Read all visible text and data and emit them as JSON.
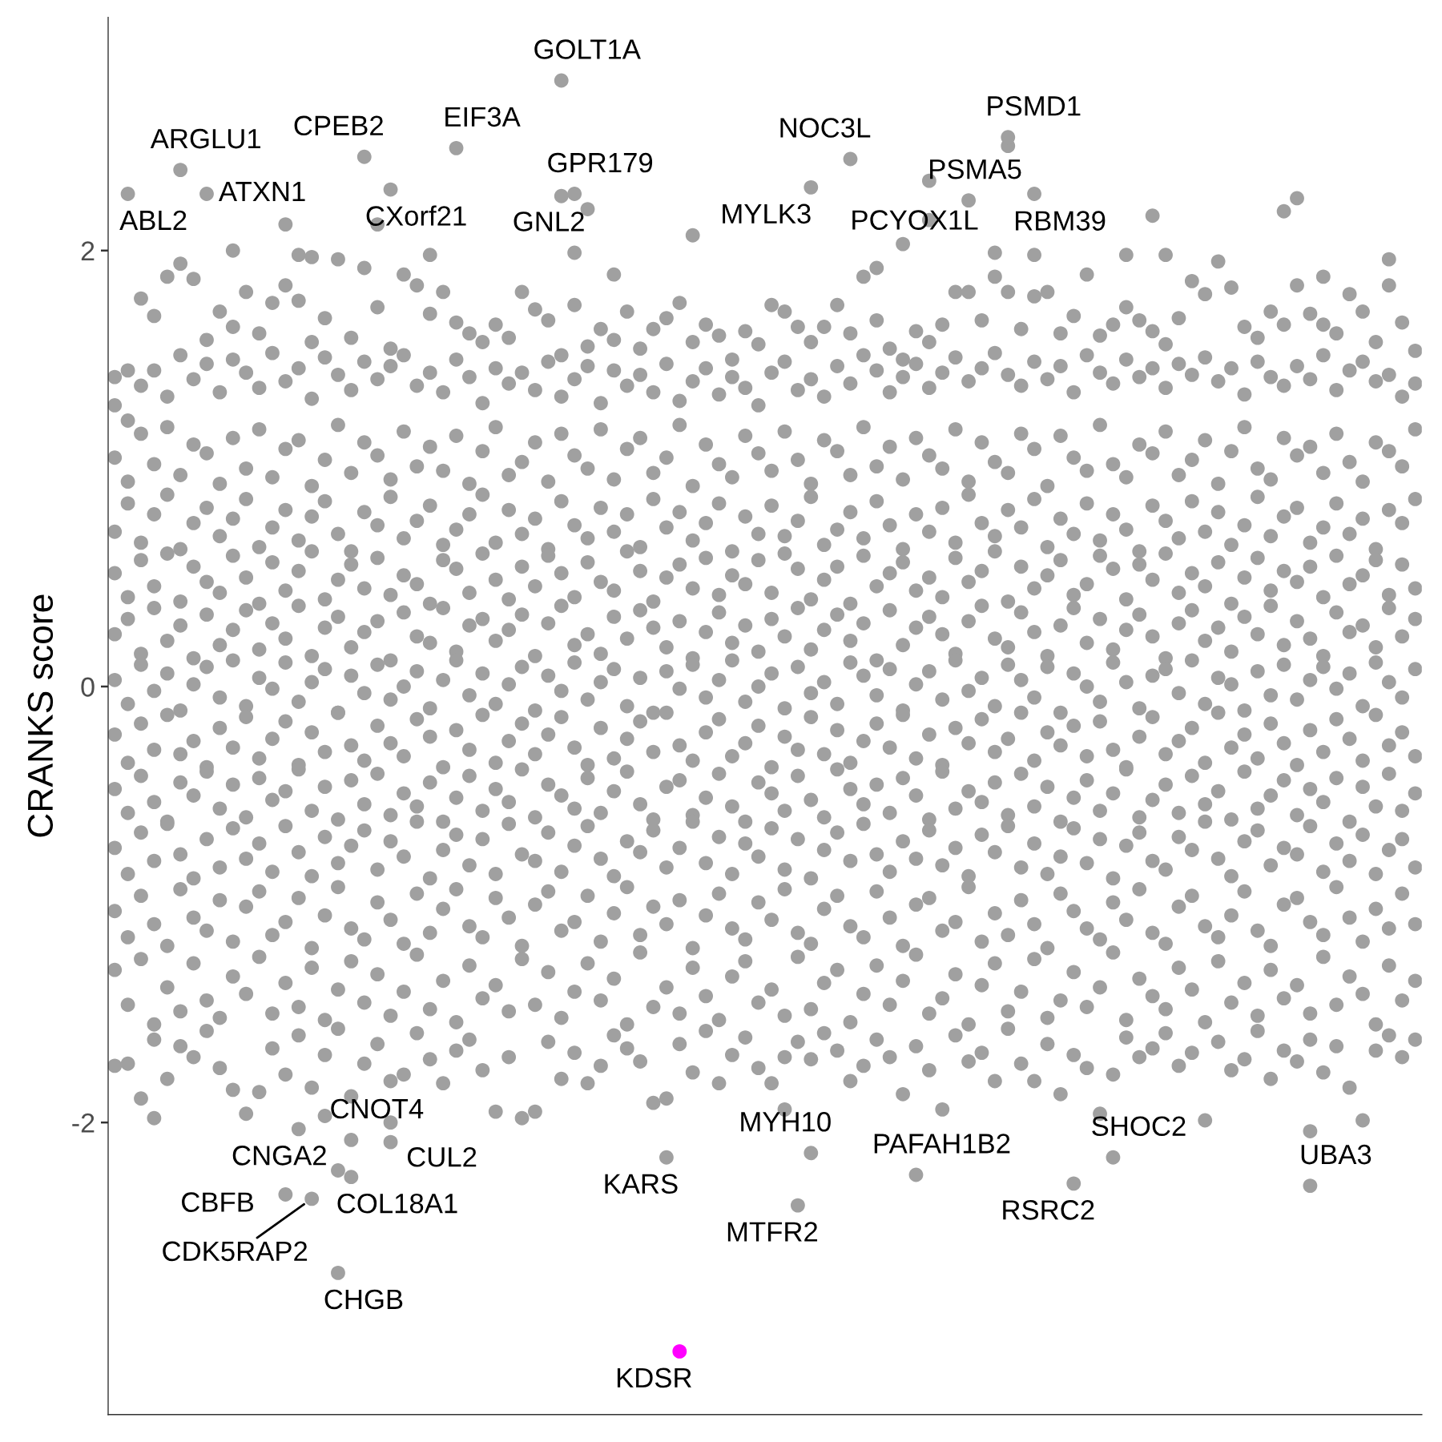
{
  "chart_data": {
    "type": "scatter",
    "ylabel": "CRANKS score",
    "marker": "circle",
    "tick_labels": "y",
    "ylim": [
      -3.34,
      3.07
    ],
    "yticks": [
      -2,
      0,
      2
    ],
    "categories": [
      null,
      null,
      null,
      null,
      null,
      null,
      null,
      null,
      null,
      null,
      null,
      null,
      null,
      null,
      null,
      null,
      null,
      null,
      null,
      null,
      null,
      null,
      null,
      null,
      null,
      null,
      null,
      null,
      null,
      null,
      null,
      null,
      null,
      null,
      null,
      null,
      null,
      null,
      null,
      null,
      null,
      null,
      null,
      null,
      null,
      null,
      null,
      null,
      null,
      null,
      null,
      null,
      null,
      null,
      null,
      null,
      null,
      null,
      null,
      null,
      null,
      null,
      null,
      null,
      null,
      null,
      null,
      null,
      null,
      null,
      null,
      null,
      null,
      null,
      null,
      null,
      null,
      null,
      null,
      null,
      null,
      null,
      null,
      null,
      null,
      null,
      null,
      null,
      null,
      null,
      null,
      null,
      null,
      null,
      null,
      null,
      null,
      null,
      null,
      null
    ],
    "series": [
      {
        "color": "#a0a0a0",
        "values": [
          null,
          null,
          null,
          null,
          null,
          null,
          null,
          null,
          null,
          2.0,
          null,
          null,
          null,
          2.12,
          1.98,
          1.97,
          null,
          -2.22,
          null,
          null,
          2.12,
          null,
          null,
          null,
          1.98,
          null,
          null,
          null,
          null,
          null,
          null,
          null,
          null,
          null,
          2.25,
          null,
          2.19,
          null,
          1.89,
          null,
          null,
          null,
          null,
          null,
          2.07,
          null,
          null,
          null,
          null,
          null,
          null,
          null,
          null,
          null,
          null,
          null,
          null,
          null,
          1.92,
          null,
          null,
          null,
          2.14,
          null,
          null,
          null,
          null,
          1.99,
          2.48,
          null,
          2.26,
          null,
          null,
          null,
          null,
          null,
          null,
          1.98,
          null,
          2.16,
          1.98,
          null,
          null,
          null,
          null,
          null,
          null,
          null,
          null,
          2.18,
          2.24,
          null,
          1.88,
          null,
          null,
          null,
          null,
          1.96,
          null,
          null
        ]
      },
      {
        "color": "#a0a0a0",
        "values": [
          1.42,
          1.45,
          1.78,
          1.7,
          1.88,
          1.94,
          1.87,
          1.59,
          1.72,
          1.65,
          1.81,
          1.62,
          1.76,
          1.84,
          1.77,
          1.58,
          1.69,
          1.96,
          1.6,
          1.92,
          1.74,
          1.55,
          1.89,
          1.84,
          1.71,
          1.81,
          1.67,
          1.62,
          1.58,
          1.66,
          1.6,
          1.81,
          1.73,
          1.68,
          1.52,
          1.75,
          1.56,
          1.64,
          1.59,
          1.72,
          1.55,
          1.64,
          1.69,
          1.76,
          1.58,
          1.66,
          1.61,
          1.5,
          1.63,
          1.57,
          1.75,
          1.72,
          1.65,
          1.58,
          1.65,
          1.75,
          1.62,
          1.88,
          1.68,
          1.55,
          1.5,
          1.63,
          1.58,
          1.66,
          1.81,
          1.81,
          1.68,
          1.88,
          1.81,
          1.64,
          1.79,
          1.81,
          1.62,
          1.7,
          1.89,
          1.61,
          1.66,
          1.74,
          1.68,
          1.63,
          1.57,
          1.69,
          1.86,
          1.8,
          1.95,
          1.83,
          1.65,
          1.6,
          1.72,
          1.66,
          1.84,
          1.71,
          1.66,
          1.62,
          1.8,
          1.72,
          1.58,
          1.84,
          1.67,
          1.54
        ]
      },
      {
        "color": "#a0a0a0",
        "values": [
          1.29,
          1.22,
          1.38,
          1.45,
          1.33,
          1.52,
          1.41,
          1.48,
          1.35,
          1.5,
          1.44,
          1.37,
          1.53,
          1.4,
          1.46,
          1.32,
          1.51,
          1.43,
          1.36,
          1.49,
          1.41,
          1.47,
          1.52,
          1.38,
          1.44,
          1.35,
          1.5,
          1.42,
          1.3,
          1.46,
          1.39,
          1.44,
          1.36,
          1.49,
          1.33,
          1.41,
          1.47,
          1.3,
          1.45,
          1.38,
          1.43,
          1.35,
          1.48,
          1.31,
          1.4,
          1.46,
          1.34,
          1.42,
          1.37,
          1.29,
          1.44,
          1.49,
          1.36,
          1.41,
          1.33,
          1.47,
          1.39,
          1.52,
          1.45,
          1.35,
          1.42,
          1.48,
          1.37,
          1.44,
          1.51,
          1.4,
          1.46,
          1.53,
          1.43,
          1.38,
          1.49,
          1.41,
          1.47,
          1.35,
          1.52,
          1.44,
          1.39,
          1.5,
          1.42,
          1.46,
          1.37,
          1.48,
          1.43,
          1.51,
          1.4,
          1.46,
          1.34,
          1.49,
          1.42,
          1.38,
          1.47,
          1.41,
          1.52,
          1.36,
          1.45,
          1.49,
          1.4,
          1.43,
          1.33,
          1.39
        ]
      },
      {
        "color": "#a0a0a0",
        "values": [
          1.05,
          0.94,
          1.16,
          1.02,
          1.19,
          0.97,
          1.11,
          1.07,
          0.93,
          1.14,
          1.0,
          1.18,
          0.96,
          1.09,
          1.13,
          0.92,
          1.04,
          1.2,
          0.98,
          1.12,
          1.06,
          0.95,
          1.17,
          1.01,
          1.1,
          0.99,
          1.15,
          0.93,
          1.08,
          1.19,
          0.97,
          1.03,
          1.12,
          0.94,
          1.16,
          1.06,
          1.0,
          1.18,
          0.95,
          1.09,
          1.14,
          0.98,
          1.05,
          1.2,
          0.92,
          1.11,
          1.02,
          0.96,
          1.15,
          1.07,
          0.99,
          1.17,
          1.04,
          0.93,
          1.13,
          1.08,
          0.97,
          1.19,
          1.01,
          1.1,
          0.95,
          1.14,
          1.06,
          1.0,
          1.18,
          0.94,
          1.12,
          1.03,
          0.98,
          1.16,
          1.09,
          0.92,
          1.15,
          1.05,
          0.99,
          1.2,
          1.02,
          0.96,
          1.11,
          1.07,
          1.17,
          0.97,
          1.04,
          1.13,
          0.93,
          1.08,
          1.19,
          1.0,
          0.95,
          1.14,
          1.06,
          1.1,
          0.98,
          1.16,
          1.03,
          0.94,
          1.12,
          1.08,
          1.01,
          1.18
        ]
      },
      {
        "color": "#a0a0a0",
        "values": [
          0.71,
          0.84,
          0.66,
          0.79,
          0.88,
          0.63,
          0.75,
          0.82,
          0.69,
          0.77,
          0.86,
          0.64,
          0.73,
          0.81,
          0.67,
          0.78,
          0.85,
          0.7,
          0.62,
          0.8,
          0.74,
          0.87,
          0.68,
          0.76,
          0.83,
          0.65,
          0.72,
          0.79,
          0.88,
          0.66,
          0.81,
          0.7,
          0.77,
          0.63,
          0.85,
          0.74,
          0.68,
          0.82,
          0.71,
          0.79,
          0.64,
          0.86,
          0.73,
          0.8,
          0.67,
          0.75,
          0.84,
          0.62,
          0.78,
          0.7,
          0.83,
          0.69,
          0.76,
          0.87,
          0.65,
          0.72,
          0.8,
          0.68,
          0.85,
          0.74,
          0.63,
          0.79,
          0.71,
          0.82,
          0.66,
          0.88,
          0.75,
          0.69,
          0.81,
          0.73,
          0.86,
          0.64,
          0.77,
          0.7,
          0.84,
          0.67,
          0.79,
          0.72,
          0.62,
          0.83,
          0.76,
          0.68,
          0.85,
          0.71,
          0.8,
          0.65,
          0.74,
          0.87,
          0.69,
          0.78,
          0.82,
          0.66,
          0.73,
          0.84,
          0.7,
          0.77,
          0.63,
          0.81,
          0.75,
          0.86
        ]
      },
      {
        "color": "#a0a0a0",
        "values": [
          0.52,
          0.41,
          0.58,
          0.46,
          0.61,
          0.39,
          0.55,
          0.48,
          0.43,
          0.6,
          0.5,
          0.38,
          0.57,
          0.44,
          0.53,
          0.62,
          0.4,
          0.49,
          0.56,
          0.45,
          0.59,
          0.42,
          0.51,
          0.47,
          0.38,
          0.58,
          0.54,
          0.43,
          0.61,
          0.49,
          0.4,
          0.55,
          0.46,
          0.6,
          0.52,
          0.41,
          0.57,
          0.48,
          0.44,
          0.62,
          0.53,
          0.39,
          0.5,
          0.56,
          0.45,
          0.59,
          0.42,
          0.51,
          0.47,
          0.58,
          0.43,
          0.61,
          0.54,
          0.4,
          0.49,
          0.55,
          0.38,
          0.6,
          0.46,
          0.52,
          0.57,
          0.44,
          0.5,
          0.41,
          0.59,
          0.48,
          0.53,
          0.62,
          0.39,
          0.55,
          0.45,
          0.51,
          0.58,
          0.42,
          0.47,
          0.6,
          0.54,
          0.4,
          0.56,
          0.49,
          0.61,
          0.43,
          0.52,
          0.46,
          0.57,
          0.38,
          0.5,
          0.59,
          0.44,
          0.53,
          0.48,
          0.55,
          0.41,
          0.6,
          0.47,
          0.51,
          0.58,
          0.42,
          0.56,
          0.45
        ]
      },
      {
        "color": "#a0a0a0",
        "values": [
          0.24,
          0.31,
          0.15,
          0.36,
          0.21,
          0.28,
          0.13,
          0.33,
          0.19,
          0.26,
          0.35,
          0.17,
          0.29,
          0.22,
          0.37,
          0.14,
          0.27,
          0.32,
          0.18,
          0.25,
          0.3,
          0.12,
          0.34,
          0.23,
          0.2,
          0.36,
          0.16,
          0.28,
          0.31,
          0.21,
          0.26,
          0.33,
          0.14,
          0.29,
          0.37,
          0.19,
          0.24,
          0.15,
          0.32,
          0.22,
          0.35,
          0.27,
          0.18,
          0.3,
          0.13,
          0.25,
          0.34,
          0.2,
          0.28,
          0.16,
          0.31,
          0.23,
          0.36,
          0.17,
          0.26,
          0.33,
          0.21,
          0.29,
          0.12,
          0.35,
          0.19,
          0.27,
          0.32,
          0.24,
          0.15,
          0.3,
          0.37,
          0.22,
          0.18,
          0.34,
          0.25,
          0.14,
          0.28,
          0.36,
          0.2,
          0.31,
          0.17,
          0.26,
          0.33,
          0.23,
          0.13,
          0.29,
          0.35,
          0.21,
          0.27,
          0.16,
          0.32,
          0.24,
          0.37,
          0.19,
          0.3,
          0.22,
          0.14,
          0.34,
          0.25,
          0.28,
          0.18,
          0.36,
          0.23,
          0.31
        ]
      },
      {
        "color": "#a0a0a0",
        "values": [
          0.03,
          -0.08,
          0.1,
          -0.02,
          0.06,
          -0.11,
          0.01,
          0.09,
          -0.05,
          0.12,
          -0.09,
          0.04,
          -0.01,
          0.11,
          -0.07,
          0.02,
          0.08,
          -0.12,
          0.05,
          -0.03,
          0.1,
          -0.06,
          0.0,
          0.07,
          -0.1,
          0.03,
          0.12,
          -0.04,
          0.06,
          -0.08,
          0.01,
          0.09,
          -0.11,
          0.05,
          -0.02,
          0.11,
          -0.06,
          0.02,
          0.08,
          -0.09,
          0.04,
          -0.12,
          0.07,
          -0.01,
          0.1,
          -0.05,
          0.03,
          0.12,
          -0.07,
          0.0,
          0.06,
          -0.1,
          0.09,
          -0.03,
          0.02,
          -0.08,
          0.11,
          0.05,
          -0.04,
          0.08,
          -0.11,
          0.01,
          0.07,
          -0.06,
          0.12,
          -0.02,
          0.04,
          -0.09,
          0.1,
          0.03,
          -0.05,
          0.09,
          -0.12,
          0.06,
          0.0,
          -0.07,
          0.11,
          0.02,
          -0.1,
          0.05,
          0.08,
          -0.03,
          0.12,
          -0.08,
          0.04,
          0.01,
          -0.11,
          0.07,
          -0.04,
          0.1,
          -0.06,
          0.03,
          0.09,
          -0.01,
          0.06,
          -0.09,
          0.11,
          0.02,
          -0.05,
          0.08
        ]
      },
      {
        "color": "#a0a0a0",
        "values": [
          -0.22,
          -0.35,
          -0.17,
          -0.29,
          -0.13,
          -0.31,
          -0.25,
          -0.37,
          -0.19,
          -0.28,
          -0.14,
          -0.33,
          -0.24,
          -0.16,
          -0.36,
          -0.21,
          -0.3,
          -0.12,
          -0.27,
          -0.34,
          -0.18,
          -0.26,
          -0.32,
          -0.15,
          -0.23,
          -0.37,
          -0.2,
          -0.29,
          -0.13,
          -0.35,
          -0.25,
          -0.17,
          -0.31,
          -0.22,
          -0.14,
          -0.28,
          -0.36,
          -0.19,
          -0.33,
          -0.24,
          -0.16,
          -0.3,
          -0.12,
          -0.27,
          -0.34,
          -0.21,
          -0.15,
          -0.32,
          -0.26,
          -0.18,
          -0.37,
          -0.23,
          -0.29,
          -0.14,
          -0.31,
          -0.2,
          -0.35,
          -0.25,
          -0.17,
          -0.28,
          -0.13,
          -0.33,
          -0.22,
          -0.36,
          -0.19,
          -0.26,
          -0.15,
          -0.3,
          -0.24,
          -0.12,
          -0.34,
          -0.21,
          -0.27,
          -0.18,
          -0.32,
          -0.16,
          -0.29,
          -0.37,
          -0.23,
          -0.14,
          -0.31,
          -0.25,
          -0.19,
          -0.35,
          -0.12,
          -0.28,
          -0.22,
          -0.33,
          -0.17,
          -0.26,
          -0.36,
          -0.2,
          -0.3,
          -0.15,
          -0.24,
          -0.34,
          -0.13,
          -0.27,
          -0.21,
          -0.32
        ]
      },
      {
        "color": "#a0a0a0",
        "values": [
          -0.47,
          -0.58,
          -0.41,
          -0.53,
          -0.62,
          -0.44,
          -0.5,
          -0.39,
          -0.56,
          -0.45,
          -0.6,
          -0.42,
          -0.52,
          -0.48,
          -0.38,
          -0.57,
          -0.46,
          -0.61,
          -0.43,
          -0.54,
          -0.4,
          -0.59,
          -0.49,
          -0.55,
          -0.44,
          -0.62,
          -0.51,
          -0.41,
          -0.57,
          -0.47,
          -0.53,
          -0.38,
          -0.6,
          -0.45,
          -0.5,
          -0.56,
          -0.42,
          -0.58,
          -0.48,
          -0.39,
          -0.54,
          -0.61,
          -0.46,
          -0.43,
          -0.59,
          -0.51,
          -0.4,
          -0.55,
          -0.62,
          -0.44,
          -0.49,
          -0.57,
          -0.41,
          -0.52,
          -0.6,
          -0.38,
          -0.47,
          -0.54,
          -0.45,
          -0.58,
          -0.42,
          -0.5,
          -0.61,
          -0.39,
          -0.56,
          -0.48,
          -0.53,
          -0.44,
          -0.59,
          -0.4,
          -0.55,
          -0.46,
          -0.62,
          -0.51,
          -0.43,
          -0.57,
          -0.49,
          -0.38,
          -0.6,
          -0.52,
          -0.45,
          -0.58,
          -0.41,
          -0.54,
          -0.48,
          -0.61,
          -0.39,
          -0.56,
          -0.5,
          -0.43,
          -0.59,
          -0.47,
          -0.53,
          -0.42,
          -0.62,
          -0.46,
          -0.55,
          -0.4,
          -0.57,
          -0.49
        ]
      },
      {
        "color": "#a0a0a0",
        "values": [
          -0.74,
          -0.86,
          -0.67,
          -0.8,
          -0.63,
          -0.77,
          -0.88,
          -0.7,
          -0.83,
          -0.65,
          -0.79,
          -0.72,
          -0.85,
          -0.64,
          -0.76,
          -0.87,
          -0.69,
          -0.81,
          -0.73,
          -0.66,
          -0.84,
          -0.71,
          -0.78,
          -0.62,
          -0.88,
          -0.75,
          -0.68,
          -0.82,
          -0.7,
          -0.86,
          -0.63,
          -0.77,
          -0.8,
          -0.67,
          -0.85,
          -0.73,
          -0.64,
          -0.79,
          -0.87,
          -0.71,
          -0.76,
          -0.66,
          -0.83,
          -0.74,
          -0.62,
          -0.81,
          -0.69,
          -0.86,
          -0.72,
          -0.78,
          -0.65,
          -0.84,
          -0.7,
          -0.88,
          -0.75,
          -0.67,
          -0.8,
          -0.63,
          -0.77,
          -0.85,
          -0.71,
          -0.79,
          -0.66,
          -0.82,
          -0.74,
          -0.87,
          -0.68,
          -0.76,
          -0.64,
          -0.83,
          -0.72,
          -0.86,
          -0.78,
          -0.65,
          -0.81,
          -0.7,
          -0.88,
          -0.73,
          -0.67,
          -0.8,
          -0.84,
          -0.69,
          -0.75,
          -0.62,
          -0.79,
          -0.87,
          -0.71,
          -0.66,
          -0.82,
          -0.74,
          -0.77,
          -0.64,
          -0.85,
          -0.72,
          -0.8,
          -0.68,
          -0.86,
          -0.75,
          -0.7,
          -0.83
        ]
      },
      {
        "color": "#a0a0a0",
        "values": [
          -1.03,
          -1.15,
          -0.96,
          -1.09,
          -1.19,
          -0.93,
          -1.06,
          -1.12,
          -0.98,
          -1.17,
          -1.01,
          -0.94,
          -1.14,
          -1.08,
          -0.97,
          -1.2,
          -1.05,
          -0.92,
          -1.11,
          -1.16,
          -0.99,
          -1.07,
          -1.18,
          -0.95,
          -1.13,
          -1.02,
          -0.93,
          -1.1,
          -1.15,
          -0.97,
          -1.06,
          -1.19,
          -1.0,
          -0.94,
          -1.12,
          -1.08,
          -0.96,
          -1.17,
          -1.04,
          -0.92,
          -1.14,
          -1.01,
          -1.09,
          -0.98,
          -1.2,
          -1.05,
          -0.95,
          -1.11,
          -1.16,
          -0.99,
          -1.07,
          -0.93,
          -1.13,
          -1.18,
          -1.02,
          -0.96,
          -1.1,
          -1.15,
          -0.94,
          -1.06,
          -1.19,
          -1.0,
          -0.97,
          -1.12,
          -1.08,
          -0.92,
          -1.17,
          -1.04,
          -1.14,
          -0.98,
          -1.09,
          -1.2,
          -0.95,
          -1.03,
          -1.11,
          -1.16,
          -0.99,
          -1.07,
          -0.93,
          -1.13,
          -1.18,
          -1.01,
          -0.96,
          -1.1,
          -1.15,
          -1.05,
          -0.94,
          -1.12,
          -1.19,
          -1.0,
          -0.97,
          -1.08,
          -1.14,
          -0.92,
          -1.06,
          -1.17,
          -1.02,
          -1.11,
          -0.95,
          -1.09
        ]
      },
      {
        "color": "#a0a0a0",
        "values": [
          -1.3,
          -1.46,
          -1.25,
          -1.55,
          -1.38,
          -1.49,
          -1.27,
          -1.44,
          -1.52,
          -1.33,
          -1.41,
          -1.24,
          -1.5,
          -1.36,
          -1.47,
          -1.29,
          -1.53,
          -1.39,
          -1.26,
          -1.45,
          -1.32,
          -1.51,
          -1.4,
          -1.23,
          -1.48,
          -1.35,
          -1.54,
          -1.28,
          -1.43,
          -1.37,
          -1.49,
          -1.25,
          -1.46,
          -1.31,
          -1.52,
          -1.4,
          -1.27,
          -1.44,
          -1.34,
          -1.55,
          -1.22,
          -1.47,
          -1.38,
          -1.5,
          -1.29,
          -1.42,
          -1.53,
          -1.33,
          -1.26,
          -1.45,
          -1.39,
          -1.51,
          -1.24,
          -1.48,
          -1.36,
          -1.3,
          -1.54,
          -1.41,
          -1.28,
          -1.46,
          -1.35,
          -1.23,
          -1.5,
          -1.43,
          -1.32,
          -1.55,
          -1.37,
          -1.27,
          -1.49,
          -1.4,
          -1.25,
          -1.52,
          -1.44,
          -1.31,
          -1.47,
          -1.38,
          -1.22,
          -1.53,
          -1.34,
          -1.42,
          -1.48,
          -1.29,
          -1.39,
          -1.54,
          -1.26,
          -1.45,
          -1.36,
          -1.51,
          -1.3,
          -1.43,
          -1.37,
          -1.5,
          -1.24,
          -1.46,
          -1.33,
          -1.41,
          -1.55,
          -1.28,
          -1.44,
          -1.35
        ]
      },
      {
        "color": "#a0a0a0",
        "values": [
          -1.74,
          -1.73,
          -1.89,
          -1.62,
          -1.8,
          -1.65,
          -1.7,
          -1.58,
          -1.75,
          -1.85,
          -1.96,
          -1.86,
          -1.66,
          -1.78,
          -1.6,
          -1.84,
          -1.69,
          -1.57,
          -1.88,
          -1.73,
          -1.64,
          -1.81,
          -1.78,
          -1.59,
          -1.71,
          -1.82,
          -1.67,
          -1.62,
          -1.76,
          -1.95,
          -1.7,
          -1.98,
          -1.95,
          -1.63,
          -1.8,
          -1.68,
          -1.82,
          -1.74,
          -1.6,
          -1.66,
          -1.72,
          -1.91,
          -1.89,
          -1.64,
          -1.77,
          -1.58,
          -1.82,
          -1.69,
          -1.61,
          -1.75,
          -1.82,
          -1.7,
          -1.63,
          -1.71,
          -1.59,
          -1.67,
          -1.81,
          -1.74,
          -1.62,
          -1.7,
          -1.87,
          -1.65,
          -1.76,
          -1.94,
          -1.6,
          -1.72,
          -1.68,
          -1.81,
          -1.57,
          -1.73,
          -1.81,
          -1.64,
          -1.87,
          -1.69,
          -1.75,
          -1.96,
          -1.78,
          -1.61,
          -1.7,
          -1.66,
          -1.59,
          -1.74,
          -1.68,
          -1.99,
          -1.63,
          -1.76,
          -1.71,
          -1.58,
          -1.8,
          -1.67,
          -1.72,
          -1.62,
          -1.77,
          -1.65,
          -1.84,
          -1.99,
          -1.67,
          -1.6,
          -1.7,
          -1.62
        ]
      },
      {
        "color": "#a0a0a0",
        "values": [
          null,
          null,
          null,
          -1.98,
          null,
          null,
          null,
          null,
          null,
          null,
          null,
          null,
          null,
          null,
          null,
          null,
          -1.97,
          null,
          null,
          null,
          null,
          -2.0,
          null,
          null,
          null,
          null,
          null,
          null,
          null,
          null,
          null,
          null,
          null,
          null,
          null,
          null,
          null,
          null,
          null,
          null,
          null,
          null,
          null,
          null,
          null,
          null,
          null,
          null,
          null,
          null,
          null,
          -1.94,
          null,
          null,
          null,
          null,
          null,
          null,
          null,
          null,
          null,
          null,
          2.32,
          null,
          null,
          null,
          null,
          null,
          null,
          null,
          null,
          null,
          null,
          null,
          null,
          null,
          null,
          null,
          null,
          null,
          null,
          null,
          null,
          null,
          null,
          null,
          null,
          null,
          null,
          null,
          null,
          -2.04,
          null,
          null,
          null,
          null,
          null,
          null,
          null,
          null
        ]
      },
      {
        "color": "#a0a0a0",
        "values": [
          null,
          2.26,
          null,
          null,
          null,
          2.37,
          null,
          2.26,
          null,
          null,
          null,
          null,
          null,
          null,
          null,
          null,
          null,
          null,
          -2.25,
          2.43,
          null,
          2.28,
          null,
          null,
          null,
          null,
          2.47,
          null,
          null,
          null,
          null,
          null,
          null,
          null,
          2.78,
          2.26,
          null,
          null,
          null,
          null,
          null,
          null,
          null,
          null,
          null,
          null,
          null,
          null,
          null,
          null,
          null,
          null,
          null,
          2.29,
          null,
          null,
          2.42,
          null,
          null,
          null,
          2.03,
          null,
          null,
          null,
          null,
          2.23,
          null,
          null,
          2.52,
          null,
          1.98,
          null,
          null,
          null,
          null,
          null,
          null,
          null,
          null,
          null,
          null,
          null,
          null,
          null,
          null,
          null,
          null,
          null,
          null,
          null,
          null,
          null,
          null,
          null,
          null,
          null,
          null,
          null,
          null,
          null
        ],
        "value_labels": [
          null,
          "ABL2",
          null,
          null,
          null,
          "ARGLU1",
          null,
          "ATXN1",
          null,
          null,
          null,
          null,
          null,
          null,
          null,
          null,
          null,
          null,
          "COL18A1",
          "CPEB2",
          null,
          "CXorf21",
          null,
          null,
          null,
          null,
          "EIF3A",
          null,
          null,
          null,
          null,
          null,
          null,
          null,
          "GOLT1A",
          "GPR179",
          null,
          null,
          null,
          null,
          null,
          null,
          null,
          null,
          null,
          null,
          null,
          null,
          null,
          null,
          null,
          null,
          null,
          "MYLK3",
          null,
          null,
          "NOC3L",
          null,
          null,
          null,
          "PCYOX1L",
          null,
          null,
          null,
          null,
          "PSMA5",
          null,
          null,
          "PSMD1",
          null,
          "RBM39",
          null,
          null,
          null,
          null,
          null,
          null,
          null,
          null,
          null,
          null,
          null,
          null,
          null,
          null,
          null,
          null,
          null,
          null,
          null,
          null,
          null,
          null,
          null,
          null,
          null,
          null,
          null,
          null,
          null
        ]
      },
      {
        "color": "#a0a0a0",
        "values": [
          null,
          null,
          null,
          null,
          null,
          null,
          null,
          null,
          null,
          null,
          null,
          null,
          null,
          -2.33,
          -2.03,
          -2.35,
          null,
          -2.69,
          -2.08,
          null,
          null,
          -2.09,
          null,
          null,
          null,
          null,
          null,
          null,
          null,
          null,
          null,
          null,
          null,
          null,
          null,
          1.99,
          null,
          null,
          null,
          null,
          null,
          null,
          -2.16,
          null,
          null,
          null,
          null,
          null,
          null,
          null,
          null,
          null,
          -2.38,
          -2.14,
          null,
          null,
          null,
          null,
          null,
          null,
          null,
          -2.24,
          null,
          null,
          null,
          null,
          null,
          null,
          null,
          null,
          null,
          null,
          null,
          -2.28,
          null,
          null,
          -2.16,
          null,
          null,
          null,
          null,
          null,
          null,
          null,
          null,
          null,
          null,
          null,
          null,
          null,
          null,
          -2.29,
          null,
          null,
          null,
          null,
          null,
          null,
          null,
          null
        ],
        "value_labels": [
          null,
          null,
          null,
          null,
          null,
          null,
          null,
          null,
          null,
          null,
          null,
          null,
          null,
          "CBFB",
          "CNGA2",
          "CDK5RAP2",
          null,
          "CHGB",
          "CNOT4",
          null,
          null,
          "CUL2",
          null,
          null,
          null,
          null,
          null,
          null,
          null,
          null,
          null,
          null,
          null,
          null,
          null,
          "GNL2",
          null,
          null,
          null,
          null,
          null,
          null,
          "KARS",
          null,
          null,
          null,
          null,
          null,
          null,
          null,
          null,
          null,
          "MTFR2",
          "MYH10",
          null,
          null,
          null,
          null,
          null,
          null,
          null,
          "PAFAH1B2",
          null,
          null,
          null,
          null,
          null,
          null,
          null,
          null,
          null,
          null,
          null,
          "RSRC2",
          null,
          null,
          "SHOC2",
          null,
          null,
          null,
          null,
          null,
          null,
          null,
          null,
          null,
          null,
          null,
          null,
          null,
          null,
          "UBA3",
          null,
          null,
          null,
          null,
          null,
          null,
          null,
          null
        ]
      },
      {
        "color": "#ff00ff",
        "values": [
          null,
          null,
          null,
          null,
          null,
          null,
          null,
          null,
          null,
          null,
          null,
          null,
          null,
          null,
          null,
          null,
          null,
          null,
          null,
          null,
          null,
          null,
          null,
          null,
          null,
          null,
          null,
          null,
          null,
          null,
          null,
          null,
          null,
          null,
          null,
          null,
          null,
          null,
          null,
          null,
          null,
          null,
          null,
          -3.05,
          null,
          null,
          null,
          null,
          null,
          null,
          null,
          null,
          null,
          null,
          null,
          null,
          null,
          null,
          null,
          null,
          null,
          null,
          null,
          null,
          null,
          null,
          null,
          null,
          null,
          null,
          null,
          null,
          null,
          null,
          null,
          null,
          null,
          null,
          null,
          null,
          null,
          null,
          null,
          null,
          null,
          null,
          null,
          null,
          null,
          null,
          null,
          null,
          null,
          null,
          null,
          null,
          null,
          null,
          null,
          null
        ],
        "value_labels": [
          null,
          null,
          null,
          null,
          null,
          null,
          null,
          null,
          null,
          null,
          null,
          null,
          null,
          null,
          null,
          null,
          null,
          null,
          null,
          null,
          null,
          null,
          null,
          null,
          null,
          null,
          null,
          null,
          null,
          null,
          null,
          null,
          null,
          null,
          null,
          null,
          null,
          null,
          null,
          null,
          null,
          null,
          null,
          "KDSR",
          null,
          null,
          null,
          null,
          null,
          null,
          null,
          null,
          null,
          null,
          null,
          null,
          null,
          null,
          null,
          null,
          null,
          null,
          null,
          null,
          null,
          null,
          null,
          null,
          null,
          null,
          null,
          null,
          null,
          null,
          null,
          null,
          null,
          null,
          null,
          null,
          null,
          null,
          null,
          null,
          null,
          null,
          null,
          null,
          null,
          null,
          null,
          null,
          null,
          null,
          null,
          null,
          null,
          null,
          null,
          null
        ]
      }
    ]
  }
}
